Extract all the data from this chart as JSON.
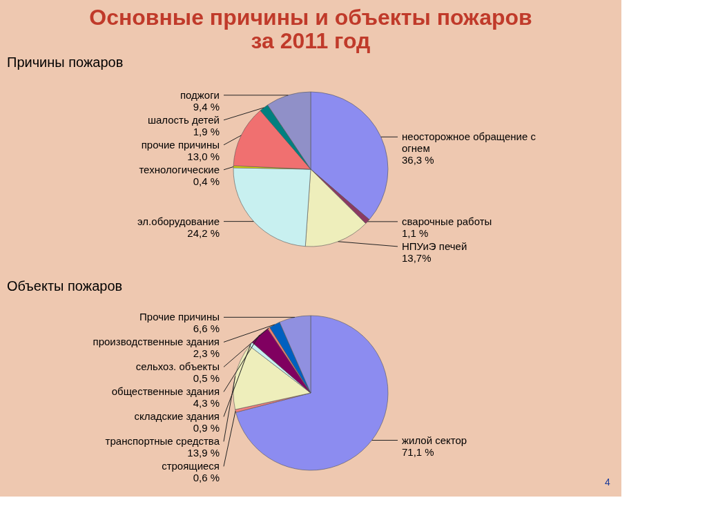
{
  "chart_data": [
    {
      "type": "pie",
      "title": "Основные причины и объекты пожаров\nза 2011 год",
      "subtitle": "Причины пожаров",
      "categories": [
        "неосторожное обращение с огнем",
        "сварочные работы",
        "НПУиЭ печей",
        "эл.оборудование",
        "технологические",
        "прочие причины",
        "шалость детей",
        "поджоги"
      ],
      "values": [
        36.3,
        1.1,
        13.7,
        24.2,
        0.4,
        13.0,
        1.9,
        9.4
      ],
      "colors": [
        "#8c8cf0",
        "#8b3a62",
        "#eeeebb",
        "#c8f0f0",
        "#e0e000",
        "#f07070",
        "#008080",
        "#9090c8"
      ],
      "value_labels": [
        "36,3 %",
        "1,1 %",
        "13,7%",
        "24,2 %",
        "0,4 %",
        "13,0 %",
        "1,9 %",
        "9,4 %"
      ]
    },
    {
      "type": "pie",
      "subtitle": "Объекты пожаров",
      "categories": [
        "жилой сектор",
        "строящиеся",
        "транспортные средства",
        "складские здания",
        "общественные здания",
        "сельхоз. объекты",
        "производственные здания",
        "Прочие причины"
      ],
      "values": [
        71.1,
        0.6,
        13.9,
        0.9,
        4.3,
        0.5,
        2.3,
        6.6
      ],
      "colors": [
        "#8c8cf0",
        "#f08080",
        "#eeeebb",
        "#c8f0f0",
        "#800060",
        "#f08070",
        "#0060c0",
        "#9090e0"
      ],
      "value_labels": [
        "71,1 %",
        "0,6 %",
        "13,9 %",
        "0,9 %",
        "4,3 %",
        "0,5 %",
        "2,3 %",
        "6,6 %"
      ],
      "annotations": [
        "4"
      ]
    }
  ]
}
